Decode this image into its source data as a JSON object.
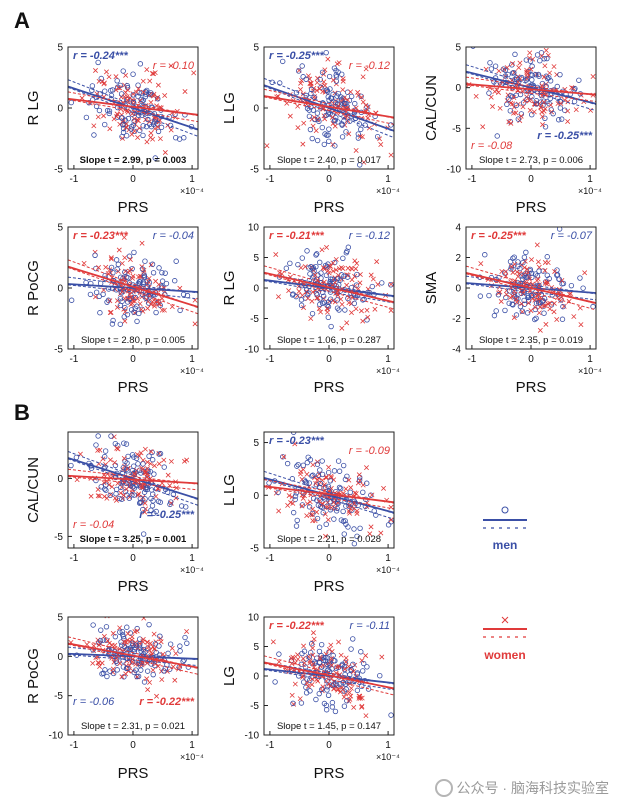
{
  "sections": [
    "A",
    "B"
  ],
  "colors": {
    "men": "#3a4fa6",
    "women": "#e03a3a",
    "axis": "#222222",
    "bg": "#ffffff"
  },
  "legend": {
    "men_label": "men",
    "women_label": "women"
  },
  "watermark": "公众号 · 脑海科技实验室",
  "chart_data": [
    {
      "type": "scatter",
      "id": "A1",
      "xlabel": "PRS",
      "ylabel": "R LG",
      "x_exp": "×10⁻⁴",
      "xlim": [
        -1.1,
        1.1
      ],
      "ylim": [
        -5,
        5
      ],
      "xticks": [
        -1,
        0,
        1
      ],
      "yticks": [
        -5,
        0,
        5
      ],
      "r_men": {
        "text": "r = -0.24***",
        "bold": true
      },
      "r_women": {
        "text": "r = -0.10",
        "bold": false
      },
      "r_pos": "top",
      "slope_text": "Slope t = 2.99, p = 0.003",
      "slope_bold": true,
      "fit_men": {
        "slope": -1.6,
        "intercept": 0.0
      },
      "fit_women": {
        "slope": -0.6,
        "intercept": 0.1
      },
      "spread": 1.4
    },
    {
      "type": "scatter",
      "id": "A2",
      "xlabel": "PRS",
      "ylabel": "L LG",
      "x_exp": "×10⁻⁴",
      "xlim": [
        -1.1,
        1.1
      ],
      "ylim": [
        -5,
        5
      ],
      "xticks": [
        -1,
        0,
        1
      ],
      "yticks": [
        -5,
        0,
        5
      ],
      "r_men": {
        "text": "r = -0.25***",
        "bold": true
      },
      "r_women": {
        "text": "r = -0.12",
        "bold": false
      },
      "r_pos": "top",
      "slope_text": "Slope t = 2.40, p = 0.017",
      "slope_bold": false,
      "fit_men": {
        "slope": -1.7,
        "intercept": 0.0
      },
      "fit_women": {
        "slope": -0.8,
        "intercept": 0.1
      },
      "spread": 1.5
    },
    {
      "type": "scatter",
      "id": "A3",
      "xlabel": "PRS",
      "ylabel": "CAL/CUN",
      "x_exp": "×10⁻⁴",
      "xlim": [
        -1.1,
        1.1
      ],
      "ylim": [
        -10,
        5
      ],
      "xticks": [
        -1,
        0,
        1
      ],
      "yticks": [
        -10,
        -5,
        0,
        5
      ],
      "r_men": {
        "text": "r = -0.25***",
        "bold": true
      },
      "r_women": {
        "text": "r = -0.08",
        "bold": false
      },
      "r_pos": "bottom",
      "slope_text": "Slope t = 2.73, p = 0.006",
      "slope_bold": false,
      "fit_men": {
        "slope": -1.8,
        "intercept": 0.0
      },
      "fit_women": {
        "slope": -0.6,
        "intercept": -0.2
      },
      "spread": 2.0
    },
    {
      "type": "scatter",
      "id": "A4",
      "xlabel": "PRS",
      "ylabel": "R PoCG",
      "x_exp": "×10⁻⁴",
      "xlim": [
        -1.1,
        1.1
      ],
      "ylim": [
        -5,
        5
      ],
      "xticks": [
        -1,
        0,
        1
      ],
      "yticks": [
        -5,
        0,
        5
      ],
      "r_men": {
        "text": "r = -0.04",
        "bold": false
      },
      "r_women": {
        "text": "r = -0.23***",
        "bold": true
      },
      "r_pos": "top",
      "slope_text": "Slope t = 2.80, p = 0.005",
      "slope_bold": false,
      "fit_men": {
        "slope": -0.3,
        "intercept": 0.0
      },
      "fit_women": {
        "slope": -1.5,
        "intercept": 0.1
      },
      "spread": 1.3
    },
    {
      "type": "scatter",
      "id": "A5",
      "xlabel": "PRS",
      "ylabel": "R LG",
      "x_exp": "×10⁻⁴",
      "xlim": [
        -1.1,
        1.1
      ],
      "ylim": [
        -10,
        10
      ],
      "xticks": [
        -1,
        0,
        1
      ],
      "yticks": [
        -10,
        -5,
        0,
        5,
        10
      ],
      "r_men": {
        "text": "r = -0.12",
        "bold": false
      },
      "r_women": {
        "text": "r = -0.21***",
        "bold": true
      },
      "r_pos": "top",
      "slope_text": "Slope t = 1.06, p = 0.287",
      "slope_bold": false,
      "fit_men": {
        "slope": -1.2,
        "intercept": 0.0
      },
      "fit_women": {
        "slope": -2.2,
        "intercept": 0.1
      },
      "spread": 2.8
    },
    {
      "type": "scatter",
      "id": "A6",
      "xlabel": "PRS",
      "ylabel": "SMA",
      "x_exp": "×10⁻⁴",
      "xlim": [
        -1.1,
        1.1
      ],
      "ylim": [
        -4,
        4
      ],
      "xticks": [
        -1,
        0,
        1
      ],
      "yticks": [
        -4,
        -2,
        0,
        2,
        4
      ],
      "r_men": {
        "text": "r = -0.07",
        "bold": false
      },
      "r_women": {
        "text": "r = -0.25***",
        "bold": true
      },
      "r_pos": "top",
      "slope_text": "Slope t = 2.35, p = 0.019",
      "slope_bold": false,
      "fit_men": {
        "slope": -0.3,
        "intercept": 0.0
      },
      "fit_women": {
        "slope": -0.9,
        "intercept": 0.0
      },
      "spread": 1.0
    },
    {
      "type": "scatter",
      "id": "B1",
      "xlabel": "PRS",
      "ylabel": "CAL/CUN",
      "x_exp": "×10⁻⁴",
      "xlim": [
        -1.1,
        1.1
      ],
      "ylim": [
        -6,
        4
      ],
      "xticks": [
        -1,
        0,
        1
      ],
      "yticks": [
        -5,
        0
      ],
      "r_men": {
        "text": "r = -0.25***",
        "bold": true
      },
      "r_women": {
        "text": "r = -0.04",
        "bold": false
      },
      "r_pos": "bottom",
      "slope_text": "Slope t = 3.25, p = 0.001",
      "slope_bold": true,
      "fit_men": {
        "slope": -1.6,
        "intercept": 0.0
      },
      "fit_women": {
        "slope": -0.3,
        "intercept": -0.1
      },
      "spread": 1.5
    },
    {
      "type": "scatter",
      "id": "B2",
      "xlabel": "PRS",
      "ylabel": "L LG",
      "x_exp": "×10⁻⁴",
      "xlim": [
        -1.1,
        1.1
      ],
      "ylim": [
        -5,
        6
      ],
      "xticks": [
        -1,
        0,
        1
      ],
      "yticks": [
        -5,
        0,
        5
      ],
      "r_men": {
        "text": "r = -0.23***",
        "bold": true
      },
      "r_women": {
        "text": "r = -0.09",
        "bold": false
      },
      "r_pos": "top",
      "slope_text": "Slope t = 2.21, p = 0.028",
      "slope_bold": false,
      "fit_men": {
        "slope": -1.5,
        "intercept": 0.0
      },
      "fit_women": {
        "slope": -0.7,
        "intercept": 0.1
      },
      "spread": 1.6
    },
    {
      "type": "scatter",
      "id": "B3",
      "xlabel": "PRS",
      "ylabel": "R PoCG",
      "x_exp": "×10⁻⁴",
      "xlim": [
        -1.1,
        1.1
      ],
      "ylim": [
        -10,
        5
      ],
      "xticks": [
        -1,
        0,
        1
      ],
      "yticks": [
        -10,
        -5,
        0,
        5
      ],
      "r_men": {
        "text": "r = -0.06",
        "bold": false
      },
      "r_women": {
        "text": "r = -0.22***",
        "bold": true
      },
      "r_pos": "bottom",
      "slope_text": "Slope t = 2.31, p = 0.021",
      "slope_bold": false,
      "fit_men": {
        "slope": -0.3,
        "intercept": 0.0
      },
      "fit_women": {
        "slope": -1.4,
        "intercept": 0.1
      },
      "spread": 1.8
    },
    {
      "type": "scatter",
      "id": "B4",
      "xlabel": "PRS",
      "ylabel": "LG",
      "x_exp": "×10⁻⁴",
      "xlim": [
        -1.1,
        1.1
      ],
      "ylim": [
        -10,
        10
      ],
      "xticks": [
        -1,
        0,
        1
      ],
      "yticks": [
        -10,
        -5,
        0,
        5,
        10
      ],
      "r_men": {
        "text": "r = -0.11",
        "bold": false
      },
      "r_women": {
        "text": "r = -0.22***",
        "bold": true
      },
      "r_pos": "top",
      "slope_text": "Slope t = 1.45, p = 0.147",
      "slope_bold": false,
      "fit_men": {
        "slope": -1.1,
        "intercept": 0.0
      },
      "fit_women": {
        "slope": -2.0,
        "intercept": 0.1
      },
      "spread": 2.6
    }
  ]
}
